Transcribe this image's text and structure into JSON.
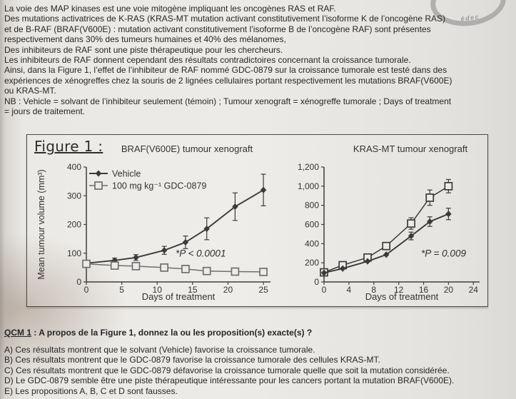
{
  "page": {
    "stamp_text": "édec",
    "intro_lines": [
      "La voie des MAP kinases est une voie mitogène impliquant les oncogènes RAS et RAF.",
      "Des mutations activatrices de K-RAS (KRAS-MT mutation activant constitutivement l’isoforme K de l’oncogène RAS)",
      "et de B-RAF (BRAF(V600E) : mutation activant constitutivement l’isoforme B de l’oncogène RAF) sont présentes",
      "respectivement dans 30% des tumeurs humaines et 40% des mélanomes,",
      "Des inhibiteurs de RAF sont une piste thérapeutique pour les chercheurs.",
      "Les inhibiteurs de RAF donnent cependant des résultats contradictoires concernant la croissance tumorale.",
      "Ainsi, dans la Figure 1, l’effet de l’inhibiteur de RAF nommé GDC-0879 sur la croissance tumorale est testé dans des",
      "expériences de xénogreffes chez la souris de 2 lignées cellulaires portant respectivement les mutations BRAF(V600E)",
      "ou KRAS-MT.",
      "NB : Vehicle = solvant de l’inhibiteur seulement (témoin) ; Tumour xenograft = xénogreffe tumorale ; Days of treatment",
      "= jours de traitement."
    ],
    "figure": {
      "label": "Figure 1 :"
    },
    "qcm": {
      "title_prefix": "QCM 1",
      "title_rest": " : A propos de la Figure 1, donnez la ou les proposition(s) exacte(s) ?",
      "options": [
        "A) Ces résultats montrent que le solvant (Vehicle) favorise la croissance tumorale.",
        "B) Ces résultats montrent que le GDC-0879 favorise la croissance tumorale des cellules KRAS-MT.",
        "C) Ces résultats montrent que le GDC-0879 défavorise la croissance tumorale quelle que soit la mutation considérée.",
        "D) Le GDC-0879 semble être une piste thérapeutique intéressante pour les cancers portant la mutation BRAF(V600E).",
        "E) Les propositions A, B, C et D sont fausses."
      ]
    }
  },
  "chart_data": [
    {
      "type": "line",
      "title": "BRAF(V600E)  tumour xenograft",
      "xlabel": "Days of treatment",
      "ylabel": "Mean tumour volume (mm³)",
      "xlim": [
        0,
        26
      ],
      "ylim": [
        0,
        400
      ],
      "xticks": [
        0,
        5,
        10,
        15,
        20,
        25
      ],
      "yticks": [
        0,
        100,
        200,
        300,
        400
      ],
      "ytick_labels": [
        "0",
        "100",
        "200",
        "300",
        "400"
      ],
      "annotation": {
        "text": "*P < 0.0001",
        "x": 12.6,
        "y": 88
      },
      "legend_position": "top-left",
      "series": [
        {
          "name": "Vehicle",
          "marker": "diamond",
          "color": "#3b3b3b",
          "x": [
            0,
            4,
            7,
            11,
            14,
            17,
            21,
            25
          ],
          "y": [
            65,
            75,
            85,
            110,
            138,
            185,
            262,
            320
          ],
          "err": [
            6,
            8,
            10,
            14,
            22,
            38,
            48,
            55
          ]
        },
        {
          "name": "100 mg kg⁻¹ GDC-0879",
          "marker": "square",
          "color": "#6f6f6f",
          "x": [
            0,
            4,
            7,
            11,
            14,
            17,
            21,
            25
          ],
          "y": [
            63,
            57,
            55,
            50,
            45,
            38,
            36,
            35
          ],
          "err": [
            0,
            0,
            0,
            0,
            0,
            0,
            0,
            0
          ]
        }
      ]
    },
    {
      "type": "line",
      "title": "KRAS-MT  tumour xenograft",
      "xlabel": "Days of treatment",
      "ylabel": "",
      "xlim": [
        0,
        25
      ],
      "ylim": [
        0,
        1200
      ],
      "xticks": [
        0,
        4,
        8,
        12,
        16,
        20,
        24
      ],
      "yticks": [
        0,
        200,
        400,
        600,
        800,
        1000,
        1200
      ],
      "ytick_labels": [
        "0",
        "200",
        "400",
        "600",
        "800",
        "1,000",
        "1,200"
      ],
      "annotation": {
        "text": "*P = 0.009",
        "x": 15.6,
        "y": 265
      },
      "legend_position": "none",
      "series": [
        {
          "name": "100 mg kg⁻¹ GDC-0879",
          "marker": "square",
          "color": "#3b3b3b",
          "x": [
            0,
            3,
            7,
            10,
            14,
            17,
            20
          ],
          "y": [
            100,
            175,
            255,
            375,
            610,
            880,
            1000
          ],
          "err": [
            0,
            0,
            0,
            25,
            60,
            80,
            70
          ]
        },
        {
          "name": "Vehicle",
          "marker": "diamond",
          "color": "#3b3b3b",
          "x": [
            0,
            3,
            7,
            10,
            14,
            17,
            20
          ],
          "y": [
            95,
            140,
            215,
            285,
            480,
            630,
            710
          ],
          "err": [
            0,
            0,
            0,
            0,
            40,
            50,
            60
          ]
        }
      ]
    }
  ]
}
